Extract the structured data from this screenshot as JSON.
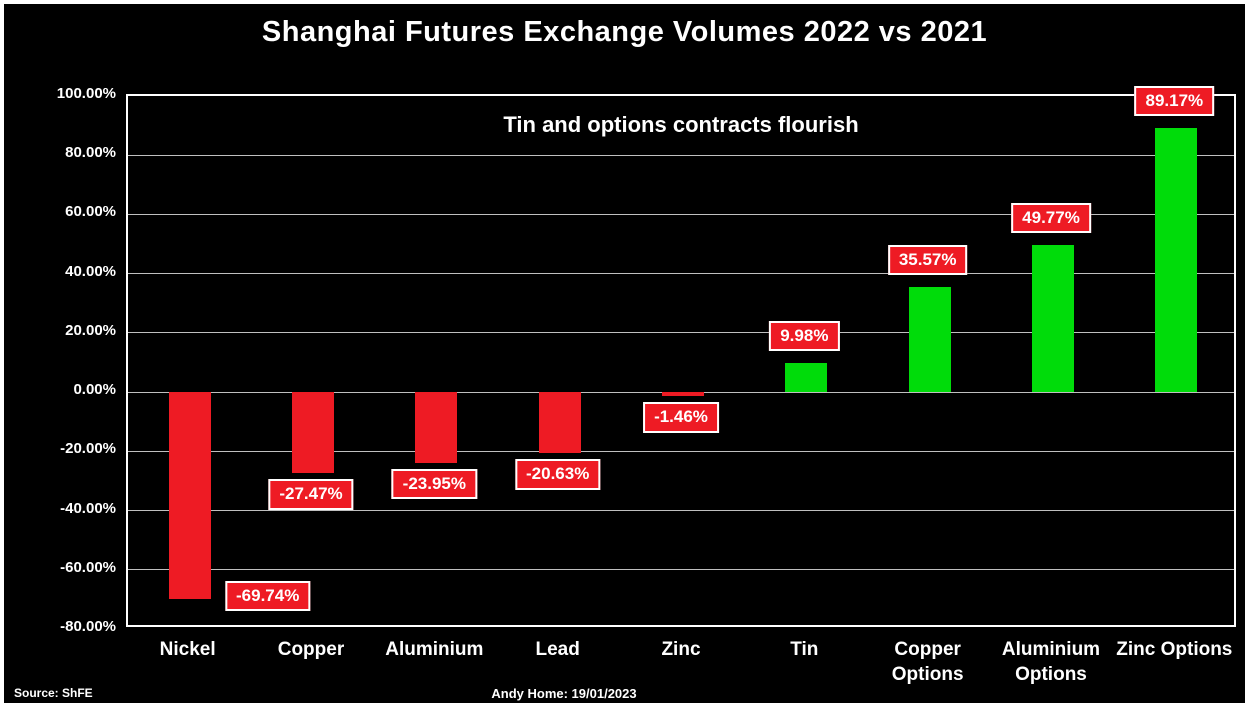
{
  "chart_data": {
    "type": "bar",
    "title": "Shanghai Futures Exchange Volumes 2022 vs 2021",
    "subtitle": "Tin and options contracts flourish",
    "categories": [
      "Nickel",
      "Copper",
      "Aluminium",
      "Lead",
      "Zinc",
      "Tin",
      "Copper Options",
      "Aluminium Options",
      "Zinc Options"
    ],
    "values": [
      -69.74,
      -27.47,
      -23.95,
      -20.63,
      -1.46,
      9.98,
      35.57,
      49.77,
      89.17
    ],
    "labels": [
      "-69.74%",
      "-27.47%",
      "-23.95%",
      "-20.63%",
      "-1.46%",
      "9.98%",
      "35.57%",
      "49.77%",
      "89.17%"
    ],
    "ylim": [
      -80,
      100
    ],
    "ytick_values": [
      100,
      80,
      60,
      40,
      20,
      0,
      -20,
      -40,
      -60,
      -80
    ],
    "yticks": [
      "100.00%",
      "80.00%",
      "60.00%",
      "40.00%",
      "20.00%",
      "0.00%",
      "-20.00%",
      "-40.00%",
      "-60.00%",
      "-80.00%"
    ],
    "grid": true,
    "legend": "none",
    "colors": {
      "positive_bar": "#00dc0a",
      "negative_bar": "#ee1b24",
      "label_bg": "#ee1b24",
      "label_text": "#ffffff",
      "label_border": "#ffffff",
      "background": "#000000",
      "text": "#ffffff"
    },
    "label_offsets": [
      {
        "dx": 80,
        "dy": -24
      },
      {
        "dx": 0,
        "dy": 0
      },
      {
        "dx": 0,
        "dy": 0
      },
      {
        "dx": 0,
        "dy": 0
      },
      {
        "dx": 0,
        "dy": 0
      },
      {
        "dx": 0,
        "dy": 0
      },
      {
        "dx": 0,
        "dy": 0
      },
      {
        "dx": 0,
        "dy": 0
      },
      {
        "dx": 0,
        "dy": 0
      }
    ]
  },
  "footer": {
    "source": "Source: ShFE",
    "credit": "Andy Home: 19/01/2023"
  }
}
